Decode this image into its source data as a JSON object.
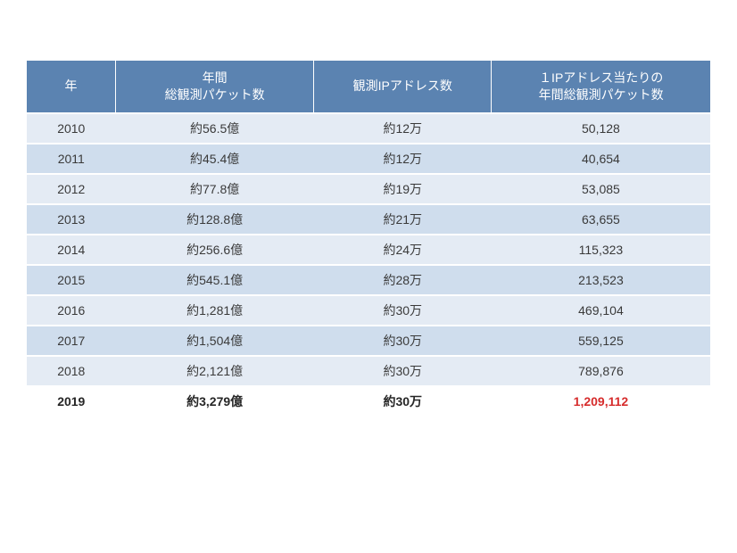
{
  "table": {
    "columns": [
      "年",
      "年間\n総観測パケット数",
      "観測IPアドレス数",
      "１IPアドレス当たりの\n年間総観測パケット数"
    ],
    "col_classes": [
      "col-year",
      "col-packets",
      "col-ips",
      "col-perip"
    ],
    "rows": [
      {
        "cells": [
          "2010",
          "約56.5億",
          "約12万",
          "50,128"
        ],
        "band": "even"
      },
      {
        "cells": [
          "2011",
          "約45.4億",
          "約12万",
          "40,654"
        ],
        "band": "odd"
      },
      {
        "cells": [
          "2012",
          "約77.8億",
          "約19万",
          "53,085"
        ],
        "band": "even"
      },
      {
        "cells": [
          "2013",
          "約128.8億",
          "約21万",
          "63,655"
        ],
        "band": "odd"
      },
      {
        "cells": [
          "2014",
          "約256.6億",
          "約24万",
          "115,323"
        ],
        "band": "even"
      },
      {
        "cells": [
          "2015",
          "約545.1億",
          "約28万",
          "213,523"
        ],
        "band": "odd"
      },
      {
        "cells": [
          "2016",
          "約1,281億",
          "約30万",
          "469,104"
        ],
        "band": "even"
      },
      {
        "cells": [
          "2017",
          "約1,504億",
          "約30万",
          "559,125"
        ],
        "band": "odd"
      },
      {
        "cells": [
          "2018",
          "約2,121億",
          "約30万",
          "789,876"
        ],
        "band": "even"
      },
      {
        "cells": [
          "2019",
          "約3,279億",
          "約30万",
          "1,209,112"
        ],
        "band": "final",
        "highlight_idx": 3
      }
    ],
    "header_bg": "#5b83b1",
    "row_even_bg": "#e4ebf4",
    "row_odd_bg": "#cfdded",
    "highlight_color": "#d62c2c",
    "text_color": "#3a3a3a"
  }
}
